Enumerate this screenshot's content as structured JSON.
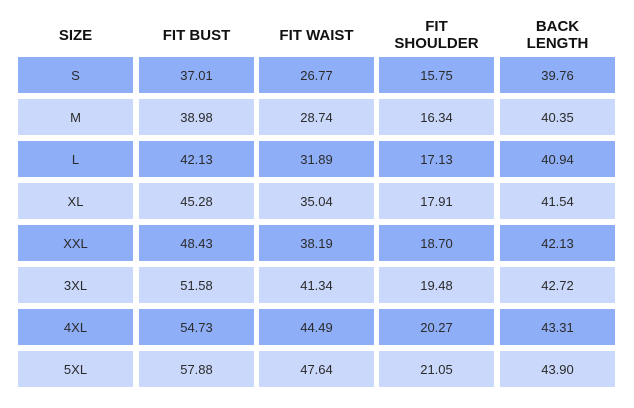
{
  "table": {
    "header": [
      "SIZE",
      "FIT BUST",
      "FIT WAIST",
      "FIT\nSHOULDER",
      "BACK\nLENGTH"
    ],
    "rows": [
      [
        "S",
        "37.01",
        "26.77",
        "15.75",
        "39.76"
      ],
      [
        "M",
        "38.98",
        "28.74",
        "16.34",
        "40.35"
      ],
      [
        "L",
        "42.13",
        "31.89",
        "17.13",
        "40.94"
      ],
      [
        "XL",
        "45.28",
        "35.04",
        "17.91",
        "41.54"
      ],
      [
        "XXL",
        "48.43",
        "38.19",
        "18.70",
        "42.13"
      ],
      [
        "3XL",
        "51.58",
        "41.34",
        "19.48",
        "42.72"
      ],
      [
        "4XL",
        "54.73",
        "44.49",
        "20.27",
        "43.31"
      ],
      [
        "5XL",
        "57.88",
        "47.64",
        "21.05",
        "43.90"
      ]
    ]
  }
}
